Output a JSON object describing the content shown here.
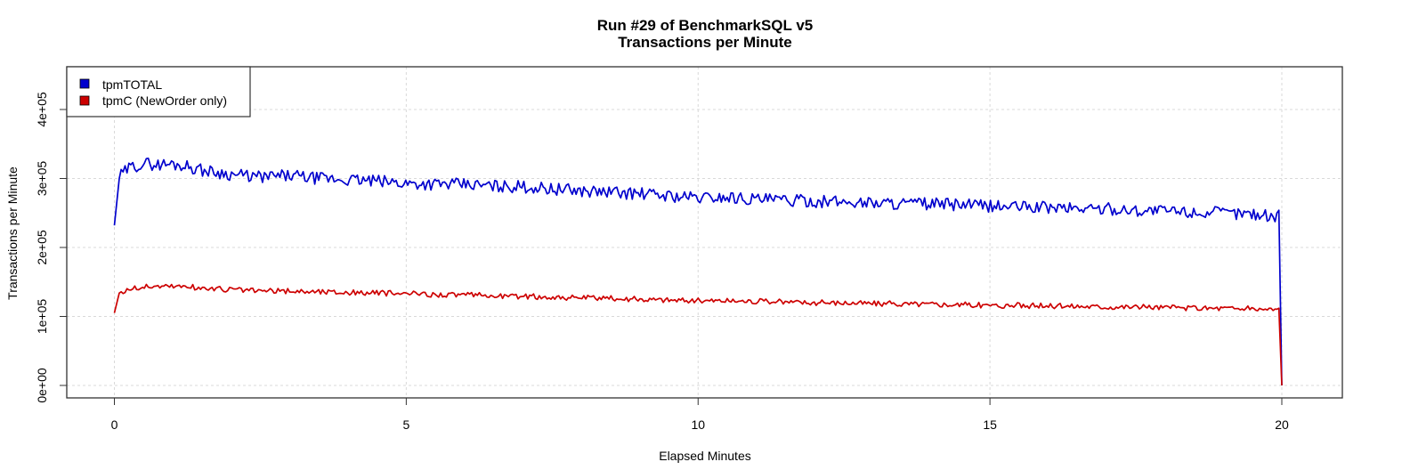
{
  "title": {
    "line1": "Run #29 of BenchmarkSQL v5",
    "line2": "Transactions per Minute"
  },
  "axes": {
    "xlabel": "Elapsed Minutes",
    "ylabel": "Transactions per Minute",
    "x_ticks": [
      "0",
      "5",
      "10",
      "15",
      "20"
    ],
    "y_ticks": [
      "0e+00",
      "1e+05",
      "2e+05",
      "3e+05",
      "4e+05"
    ]
  },
  "legend": {
    "items": [
      {
        "label": "tpmTOTAL",
        "color": "#0000cd"
      },
      {
        "label": "tpmC (NewOrder only)",
        "color": "#cd0000"
      }
    ]
  },
  "chart_data": {
    "type": "line",
    "title": "Run #29 of BenchmarkSQL v5 — Transactions per Minute",
    "xlabel": "Elapsed Minutes",
    "ylabel": "Transactions per Minute",
    "xlim": [
      0,
      20
    ],
    "ylim": [
      0,
      400000
    ],
    "x_ticks": [
      0,
      5,
      10,
      15,
      20
    ],
    "y_ticks": [
      0,
      100000,
      200000,
      300000,
      400000
    ],
    "grid": true,
    "legend_position": "topleft",
    "x": [
      0,
      0.05,
      0.25,
      0.5,
      0.75,
      1,
      1.25,
      1.5,
      2,
      2.5,
      3,
      3.5,
      4,
      4.5,
      5,
      5.5,
      6,
      6.5,
      7,
      7.5,
      8,
      8.5,
      9,
      9.5,
      10,
      10.5,
      11,
      11.5,
      12,
      12.5,
      13,
      13.5,
      14,
      14.5,
      15,
      15.5,
      16,
      16.5,
      17,
      17.5,
      18,
      18.5,
      19,
      19.5,
      19.95,
      20
    ],
    "series": [
      {
        "name": "tpmTOTAL",
        "color": "#0000cd",
        "values": [
          232000,
          300000,
          315000,
          322000,
          320000,
          321000,
          318000,
          312000,
          306000,
          302000,
          304000,
          300000,
          298000,
          296000,
          293000,
          292000,
          291000,
          289000,
          288000,
          285000,
          282000,
          280000,
          278000,
          275000,
          272000,
          273000,
          270000,
          268000,
          267000,
          266000,
          265000,
          264000,
          263000,
          262000,
          260000,
          259000,
          258000,
          257000,
          256000,
          254000,
          253000,
          251000,
          250000,
          249000,
          245000,
          0
        ]
      },
      {
        "name": "tpmC (NewOrder only)",
        "color": "#cd0000",
        "values": [
          105000,
          132000,
          140000,
          143000,
          144000,
          144000,
          143000,
          141000,
          139000,
          137000,
          137000,
          136000,
          135000,
          134000,
          133000,
          132000,
          131000,
          130000,
          129000,
          128000,
          127000,
          126000,
          125000,
          124000,
          123000,
          123000,
          122000,
          121000,
          120000,
          120000,
          119000,
          118000,
          118000,
          117000,
          116000,
          116000,
          115000,
          115000,
          114000,
          114000,
          113000,
          112000,
          112000,
          111000,
          110000,
          0
        ]
      }
    ]
  }
}
